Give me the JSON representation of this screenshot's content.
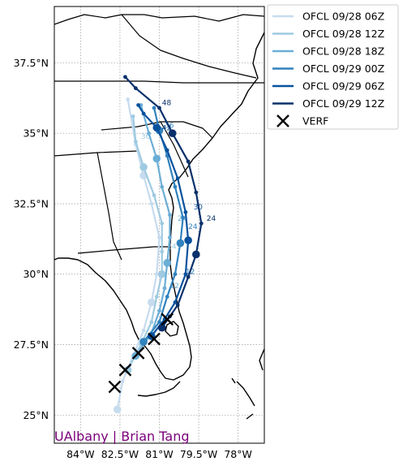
{
  "map": {
    "lon_range": [
      -85,
      -77
    ],
    "lat_range": [
      24,
      39.5
    ],
    "x_ticks": [
      "84°W",
      "82.5°W",
      "81°W",
      "79.5°W",
      "78°W"
    ],
    "x_tick_values": [
      -84,
      -82.5,
      -81,
      -79.5,
      -78
    ],
    "y_ticks": [
      "37.5°N",
      "35°N",
      "32.5°N",
      "30°N",
      "27.5°N",
      "25°N"
    ],
    "y_tick_values": [
      37.5,
      35,
      32.5,
      30,
      27.5,
      25
    ],
    "grid": true,
    "credit": "UAlbany | Brian Tang"
  },
  "legend": {
    "placement": "outside-top-right",
    "entries": [
      {
        "label": "OFCL 09/28 06Z",
        "color": "#c6dbef",
        "kind": "line"
      },
      {
        "label": "OFCL 09/28 12Z",
        "color": "#9ecae1",
        "kind": "line"
      },
      {
        "label": "OFCL 09/28 18Z",
        "color": "#6baed6",
        "kind": "line"
      },
      {
        "label": "OFCL 09/29 00Z",
        "color": "#3182bd",
        "kind": "line"
      },
      {
        "label": "OFCL 09/29 06Z",
        "color": "#08519c",
        "kind": "line"
      },
      {
        "label": "OFCL 09/29 12Z",
        "color": "#08306b",
        "kind": "line"
      },
      {
        "label": "VERF",
        "color": "#000000",
        "kind": "x"
      }
    ]
  },
  "chart_data": {
    "type": "line",
    "x_unit": "longitude (°)",
    "y_unit": "latitude (°)",
    "series": [
      {
        "name": "OFCL 09/28 06Z",
        "color": "#c6dbef",
        "points": [
          [
            -82.6,
            25.2
          ],
          [
            -82.4,
            26.2
          ],
          [
            -82.0,
            27.1
          ],
          [
            -81.6,
            28.0
          ],
          [
            -81.3,
            29.0
          ],
          [
            -81.1,
            30.0
          ],
          [
            -81.0,
            31.3
          ],
          [
            -81.3,
            32.5
          ],
          [
            -81.6,
            33.5
          ],
          [
            -81.9,
            34.6
          ],
          [
            -82.2,
            36.2
          ]
        ],
        "labels": []
      },
      {
        "name": "OFCL 09/28 12Z",
        "color": "#9ecae1",
        "points": [
          [
            -82.2,
            26.6
          ],
          [
            -81.7,
            27.5
          ],
          [
            -81.3,
            28.3
          ],
          [
            -81.1,
            29.2
          ],
          [
            -80.9,
            30.0
          ],
          [
            -80.9,
            30.8
          ],
          [
            -80.9,
            31.8
          ],
          [
            -81.2,
            32.8
          ],
          [
            -81.6,
            33.8
          ],
          [
            -81.9,
            34.7
          ],
          [
            -82.0,
            35.6
          ]
        ],
        "labels": [
          {
            "text": "24",
            "lon": -80.7,
            "lat": 30.9
          },
          {
            "text": "36",
            "lon": -81.7,
            "lat": 34.8
          }
        ]
      },
      {
        "name": "OFCL 09/28 18Z",
        "color": "#6baed6",
        "points": [
          [
            -81.9,
            27.1
          ],
          [
            -81.3,
            27.9
          ],
          [
            -81.0,
            28.7
          ],
          [
            -80.8,
            29.5
          ],
          [
            -80.7,
            30.4
          ],
          [
            -80.6,
            31.3
          ],
          [
            -80.6,
            32.1
          ],
          [
            -80.9,
            33.1
          ],
          [
            -81.1,
            34.1
          ],
          [
            -81.4,
            35.0
          ],
          [
            -81.7,
            36.0
          ]
        ],
        "labels": [
          {
            "text": "12",
            "lon": -80.6,
            "lat": 29.5
          },
          {
            "text": "24",
            "lon": -80.3,
            "lat": 31.9
          }
        ]
      },
      {
        "name": "OFCL 09/29 00Z",
        "color": "#3182bd",
        "points": [
          [
            -81.6,
            27.6
          ],
          [
            -81.0,
            28.3
          ],
          [
            -80.7,
            29.2
          ],
          [
            -80.4,
            30.0
          ],
          [
            -80.2,
            31.1
          ],
          [
            -80.1,
            32.0
          ],
          [
            -80.4,
            33.1
          ],
          [
            -80.7,
            34.2
          ],
          [
            -81.0,
            35.1
          ],
          [
            -81.2,
            35.9
          ]
        ],
        "labels": [
          {
            "text": "12",
            "lon": -80.0,
            "lat": 30.0
          },
          {
            "text": "24",
            "lon": -79.9,
            "lat": 31.6
          },
          {
            "text": "36",
            "lon": -80.8,
            "lat": 35.2
          }
        ]
      },
      {
        "name": "OFCL 09/29 06Z",
        "color": "#08519c",
        "points": [
          [
            -81.3,
            27.8
          ],
          [
            -80.8,
            28.4
          ],
          [
            -80.4,
            29.0
          ],
          [
            -80.0,
            30.0
          ],
          [
            -79.9,
            31.2
          ],
          [
            -80.0,
            32.2
          ],
          [
            -80.3,
            33.4
          ],
          [
            -80.7,
            34.4
          ],
          [
            -81.1,
            35.2
          ],
          [
            -81.6,
            35.7
          ],
          [
            -81.8,
            36.0
          ]
        ],
        "labels": [
          {
            "text": "30",
            "lon": -79.7,
            "lat": 32.3
          },
          {
            "text": "42",
            "lon": -80.9,
            "lat": 35.1
          }
        ]
      },
      {
        "name": "OFCL 09/29 12Z",
        "color": "#08306b",
        "points": [
          [
            -80.9,
            28.1
          ],
          [
            -80.6,
            28.5
          ],
          [
            -80.3,
            28.9
          ],
          [
            -79.9,
            29.9
          ],
          [
            -79.6,
            30.7
          ],
          [
            -79.4,
            31.8
          ],
          [
            -79.6,
            32.9
          ],
          [
            -79.9,
            34.0
          ],
          [
            -80.5,
            35.0
          ],
          [
            -81.0,
            35.9
          ],
          [
            -81.9,
            36.6
          ],
          [
            -82.3,
            37.0
          ]
        ],
        "labels": [
          {
            "text": "24",
            "lon": -79.2,
            "lat": 31.9
          },
          {
            "text": "48",
            "lon": -80.9,
            "lat": 36.0
          }
        ]
      }
    ],
    "verf": {
      "name": "VERF",
      "points": [
        [
          -82.7,
          26.0
        ],
        [
          -82.3,
          26.6
        ],
        [
          -81.8,
          27.2
        ],
        [
          -81.2,
          27.7
        ],
        [
          -80.7,
          28.4
        ]
      ]
    }
  }
}
